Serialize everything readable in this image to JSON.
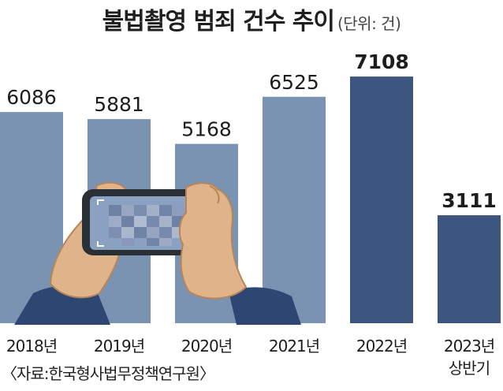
{
  "title": "불법촬영 범죄 건수 추이",
  "unit": "(단위: 건)",
  "source": "〈자료:한국형사법무정책연구원〉",
  "colors": {
    "bar_light": "#7b93b3",
    "bar_dark": "#3c5680",
    "text": "#1d1d1d"
  },
  "chart_data": {
    "type": "bar",
    "title": "불법촬영 범죄 건수 추이",
    "unit": "(단위: 건)",
    "categories": [
      "2018년",
      "2019년",
      "2020년",
      "2021년",
      "2022년",
      "2023년 상반기"
    ],
    "values": [
      6086,
      5881,
      5168,
      6525,
      7108,
      3111
    ],
    "value_labels": [
      "6086",
      "5881",
      "5168",
      "6525",
      "7108",
      "3111"
    ],
    "highlight": [
      "2022년",
      "2023년 상반기"
    ],
    "legend": "none",
    "grid": false
  },
  "illustration": "hands-holding-smartphone-icon"
}
